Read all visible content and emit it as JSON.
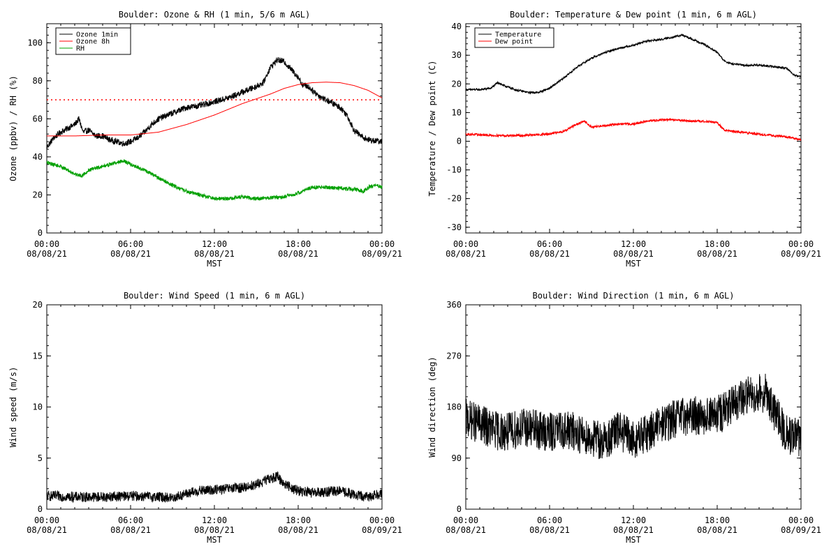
{
  "chart_data": [
    {
      "id": "ozone",
      "type": "line",
      "title": "Boulder: Ozone & RH (1 min, 5/6 m AGL)",
      "xlabel": "MST",
      "ylabel": "Ozone (ppbv) / RH (%)",
      "xlim": [
        "08/08/21 00:00",
        "08/09/21 00:00"
      ],
      "x_ticks": [
        {
          "time": "00:00",
          "date": "08/08/21"
        },
        {
          "time": "06:00",
          "date": "08/08/21"
        },
        {
          "time": "12:00",
          "date": "08/08/21"
        },
        {
          "time": "18:00",
          "date": "08/08/21"
        },
        {
          "time": "00:00",
          "date": "08/09/21"
        }
      ],
      "ylim": [
        0,
        110
      ],
      "y_ticks": [
        "0",
        "20",
        "40",
        "60",
        "80",
        "100"
      ],
      "legend_position": "top-left",
      "reference_line": {
        "y": 70,
        "color": "#ff0000",
        "style": "dotted"
      },
      "series": [
        {
          "name": "Ozone 1min",
          "color": "#000000",
          "noise": 1.6,
          "points": [
            [
              0,
              45
            ],
            [
              0.5,
              50
            ],
            [
              1,
              53
            ],
            [
              1.5,
              55
            ],
            [
              2,
              57
            ],
            [
              2.3,
              60
            ],
            [
              2.6,
              53
            ],
            [
              3,
              54
            ],
            [
              3.5,
              51
            ],
            [
              4,
              51
            ],
            [
              4.5,
              49
            ],
            [
              5,
              48
            ],
            [
              5.5,
              47
            ],
            [
              6,
              48
            ],
            [
              6.5,
              50
            ],
            [
              7,
              53
            ],
            [
              7.5,
              57
            ],
            [
              8,
              60
            ],
            [
              9,
              63
            ],
            [
              10,
              66
            ],
            [
              11,
              67
            ],
            [
              12,
              69
            ],
            [
              13,
              71
            ],
            [
              14,
              74
            ],
            [
              15,
              77
            ],
            [
              15.5,
              79
            ],
            [
              16,
              87
            ],
            [
              16.5,
              91
            ],
            [
              17,
              90
            ],
            [
              17.5,
              86
            ],
            [
              18,
              82
            ],
            [
              18.3,
              78
            ],
            [
              18.7,
              77
            ],
            [
              19.5,
              72
            ],
            [
              20.5,
              68
            ],
            [
              21,
              66
            ],
            [
              21.5,
              62
            ],
            [
              22,
              54
            ],
            [
              22.5,
              51
            ],
            [
              23,
              49
            ],
            [
              24,
              48
            ]
          ]
        },
        {
          "name": "Ozone 8h",
          "color": "#ff0000",
          "noise": 0,
          "points": [
            [
              0,
              51
            ],
            [
              2,
              51
            ],
            [
              4,
              51.5
            ],
            [
              6,
              51.5
            ],
            [
              8,
              53
            ],
            [
              10,
              57
            ],
            [
              12,
              62
            ],
            [
              14,
              68
            ],
            [
              16,
              73
            ],
            [
              17,
              76
            ],
            [
              18,
              78
            ],
            [
              19,
              79
            ],
            [
              20,
              79.3
            ],
            [
              21,
              79
            ],
            [
              22,
              77.5
            ],
            [
              23,
              75
            ],
            [
              24,
              71
            ]
          ]
        },
        {
          "name": "RH",
          "color": "#00a000",
          "noise": 1.0,
          "points": [
            [
              0,
              37
            ],
            [
              1,
              35
            ],
            [
              2,
              31
            ],
            [
              2.5,
              30
            ],
            [
              3,
              33
            ],
            [
              4,
              35
            ],
            [
              5,
              37
            ],
            [
              5.5,
              38
            ],
            [
              6,
              36
            ],
            [
              7,
              33
            ],
            [
              8,
              29
            ],
            [
              9,
              25
            ],
            [
              10,
              22
            ],
            [
              11,
              20
            ],
            [
              12,
              18
            ],
            [
              13,
              18
            ],
            [
              14,
              19
            ],
            [
              15,
              18
            ],
            [
              16,
              18.5
            ],
            [
              17,
              19
            ],
            [
              18,
              21
            ],
            [
              19,
              24
            ],
            [
              20,
              24
            ],
            [
              21,
              23.5
            ],
            [
              22,
              23
            ],
            [
              22.7,
              22
            ],
            [
              23,
              24
            ],
            [
              23.5,
              25
            ],
            [
              24,
              24
            ]
          ]
        }
      ]
    },
    {
      "id": "temp",
      "type": "line",
      "title": "Boulder: Temperature & Dew point (1 min, 6 m AGL)",
      "xlabel": "MST",
      "ylabel": "Temperature / Dew point (C)",
      "xlim": [
        "08/08/21 00:00",
        "08/09/21 00:00"
      ],
      "x_ticks": [
        {
          "time": "00:00",
          "date": "08/08/21"
        },
        {
          "time": "06:00",
          "date": "08/08/21"
        },
        {
          "time": "12:00",
          "date": "08/08/21"
        },
        {
          "time": "18:00",
          "date": "08/08/21"
        },
        {
          "time": "00:00",
          "date": "08/09/21"
        }
      ],
      "ylim": [
        -32,
        41
      ],
      "y_ticks": [
        "-30",
        "-20",
        "-10",
        "0",
        "10",
        "20",
        "30",
        "40"
      ],
      "legend_position": "top-left",
      "series": [
        {
          "name": "Temperature",
          "color": "#000000",
          "noise": 0.35,
          "points": [
            [
              0,
              18
            ],
            [
              1,
              18
            ],
            [
              1.8,
              18.5
            ],
            [
              2.3,
              20.5
            ],
            [
              2.7,
              19.5
            ],
            [
              3.5,
              18
            ],
            [
              4.5,
              17
            ],
            [
              5.2,
              17
            ],
            [
              6,
              18.5
            ],
            [
              7,
              22
            ],
            [
              8,
              26
            ],
            [
              9,
              29
            ],
            [
              10,
              31
            ],
            [
              11,
              32.5
            ],
            [
              12,
              33.5
            ],
            [
              13,
              35
            ],
            [
              14,
              35.5
            ],
            [
              15,
              36.5
            ],
            [
              15.5,
              37
            ],
            [
              16,
              36
            ],
            [
              17,
              34
            ],
            [
              18,
              31
            ],
            [
              18.5,
              28
            ],
            [
              19,
              27
            ],
            [
              20,
              26.5
            ],
            [
              21,
              26.5
            ],
            [
              22,
              26
            ],
            [
              23,
              25.5
            ],
            [
              23.5,
              23
            ],
            [
              24,
              22.5
            ]
          ]
        },
        {
          "name": "Dew point",
          "color": "#ff0000",
          "noise": 0.4,
          "points": [
            [
              0,
              2.5
            ],
            [
              2,
              2
            ],
            [
              4,
              2
            ],
            [
              6,
              2.5
            ],
            [
              7,
              3.5
            ],
            [
              8,
              6
            ],
            [
              8.5,
              7
            ],
            [
              9,
              5
            ],
            [
              10,
              5.5
            ],
            [
              11,
              6
            ],
            [
              12,
              6
            ],
            [
              13,
              7
            ],
            [
              14,
              7.5
            ],
            [
              15,
              7.5
            ],
            [
              16,
              7
            ],
            [
              17,
              7
            ],
            [
              18,
              6.5
            ],
            [
              18.5,
              4
            ],
            [
              19,
              3.5
            ],
            [
              20,
              3
            ],
            [
              21,
              2.5
            ],
            [
              22,
              2
            ],
            [
              23,
              1.5
            ],
            [
              24,
              0.5
            ]
          ]
        }
      ]
    },
    {
      "id": "wind",
      "type": "line",
      "title": "Boulder: Wind Speed (1 min, 6 m AGL)",
      "xlabel": "MST",
      "ylabel": "Wind speed (m/s)",
      "xlim": [
        "08/08/21 00:00",
        "08/09/21 00:00"
      ],
      "x_ticks": [
        {
          "time": "00:00",
          "date": "08/08/21"
        },
        {
          "time": "06:00",
          "date": "08/08/21"
        },
        {
          "time": "12:00",
          "date": "08/08/21"
        },
        {
          "time": "18:00",
          "date": "08/08/21"
        },
        {
          "time": "00:00",
          "date": "08/09/21"
        }
      ],
      "ylim": [
        0,
        20
      ],
      "y_ticks": [
        "0",
        "5",
        "10",
        "15",
        "20"
      ],
      "series": [
        {
          "name": "",
          "color": "#000000",
          "noise": 0.5,
          "points": [
            [
              0,
              1.3
            ],
            [
              2,
              1.2
            ],
            [
              4,
              1.2
            ],
            [
              6,
              1.3
            ],
            [
              8,
              1.2
            ],
            [
              9,
              1.1
            ],
            [
              10,
              1.5
            ],
            [
              11,
              1.8
            ],
            [
              12,
              1.9
            ],
            [
              13,
              2
            ],
            [
              14,
              2.1
            ],
            [
              15,
              2.4
            ],
            [
              16,
              3
            ],
            [
              16.5,
              3.2
            ],
            [
              17,
              2.5
            ],
            [
              18,
              1.8
            ],
            [
              19,
              1.6
            ],
            [
              20,
              1.7
            ],
            [
              21,
              1.8
            ],
            [
              22,
              1.4
            ],
            [
              23,
              1.2
            ],
            [
              24,
              1.6
            ]
          ]
        }
      ]
    },
    {
      "id": "winddir",
      "type": "line",
      "title": "Boulder: Wind Direction (1 min, 6 m AGL)",
      "xlabel": "MST",
      "ylabel": "Wind direction (deg)",
      "xlim": [
        "08/08/21 00:00",
        "08/09/21 00:00"
      ],
      "x_ticks": [
        {
          "time": "00:00",
          "date": "08/08/21"
        },
        {
          "time": "06:00",
          "date": "08/08/21"
        },
        {
          "time": "12:00",
          "date": "08/08/21"
        },
        {
          "time": "18:00",
          "date": "08/08/21"
        },
        {
          "time": "00:00",
          "date": "08/09/21"
        }
      ],
      "ylim": [
        0,
        360
      ],
      "y_ticks": [
        "0",
        "90",
        "180",
        "270",
        "360"
      ],
      "series": [
        {
          "name": "",
          "color": "#000000",
          "noise": 35,
          "points": [
            [
              0,
              160
            ],
            [
              1,
              150
            ],
            [
              2,
              140
            ],
            [
              3,
              135
            ],
            [
              4,
              145
            ],
            [
              5,
              140
            ],
            [
              6,
              135
            ],
            [
              7,
              140
            ],
            [
              8,
              135
            ],
            [
              9,
              125
            ],
            [
              10,
              120
            ],
            [
              11,
              140
            ],
            [
              12,
              120
            ],
            [
              13,
              135
            ],
            [
              14,
              150
            ],
            [
              15,
              160
            ],
            [
              16,
              165
            ],
            [
              17,
              165
            ],
            [
              18,
              165
            ],
            [
              19,
              180
            ],
            [
              20,
              200
            ],
            [
              21,
              205
            ],
            [
              21.5,
              205
            ],
            [
              22,
              175
            ],
            [
              23,
              130
            ],
            [
              24,
              125
            ]
          ]
        }
      ]
    }
  ]
}
